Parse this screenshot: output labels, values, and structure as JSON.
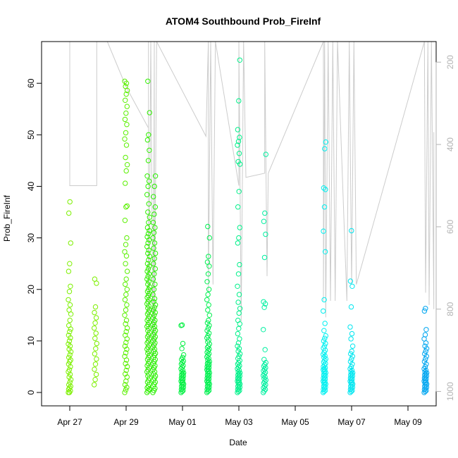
{
  "chart_data": {
    "type": "scatter",
    "title": "ATOM4 Southbound Prob_FireInf",
    "xlabel": "Date",
    "ylabel": "Prob_FireInf",
    "x_ticks": [
      "Apr 27",
      "Apr 29",
      "May 01",
      "May 03",
      "May 05",
      "May 07",
      "May 09"
    ],
    "y_ticks": [
      "0",
      "10",
      "20",
      "30",
      "40",
      "50",
      "60"
    ],
    "ylim": [
      0,
      67
    ],
    "right_axis": {
      "ticks": [
        "200",
        "400",
        "600",
        "800",
        "1000"
      ],
      "range": [
        1035,
        150
      ],
      "inverted": true,
      "color": "#b3b3b3"
    },
    "overlay_line_color": "#cccccc",
    "grid": false,
    "legend": "none",
    "x_start": "2024-04-26",
    "x_end": "2024-05-10",
    "clusters": [
      {
        "time": "2024-04-27T00:00",
        "color": "#7df000",
        "values": [
          0,
          0,
          0.3,
          0.6,
          0.9,
          1.2,
          1.5,
          2,
          2.5,
          3,
          3.5,
          4,
          4.4,
          5,
          5.5,
          6,
          6.3,
          6.8,
          7.3,
          7.9,
          8.4,
          9,
          9.4,
          10,
          10.6,
          11.1,
          11.8,
          12.3,
          13,
          14,
          15.2,
          16,
          17,
          18,
          19.6,
          20.6,
          23.5,
          25,
          29,
          34.8,
          37
        ]
      },
      {
        "time": "2024-04-27T22:00",
        "color": "#7df000",
        "values": [
          1.5,
          2.5,
          3.5,
          4.5,
          5.5,
          6.5,
          7.5,
          8.5,
          9.5,
          10.5,
          11.5,
          12.5,
          13.5,
          14.5,
          15.5,
          16.6,
          21.2,
          22
        ]
      },
      {
        "time": "2024-04-29T00:00",
        "color": "#5af000",
        "values": [
          0,
          0.5,
          1,
          1.5,
          2.2,
          3,
          3.6,
          4.3,
          5,
          5.6,
          6.3,
          7,
          7.7,
          8.4,
          9,
          9.7,
          10.4,
          11.1,
          11.8,
          12.5,
          13.3,
          14,
          15,
          16,
          17,
          18,
          19,
          20,
          21,
          22,
          23.5,
          25,
          26.5,
          27.3,
          28.7,
          30,
          33.4,
          36,
          36.2,
          40.6,
          43,
          44.2,
          45.6,
          48,
          49.2,
          50.4,
          52,
          53,
          54.2,
          55.5,
          56.7,
          57.9,
          58.6,
          59.4,
          60,
          60.4
        ]
      },
      {
        "time": "2024-04-29T19:00",
        "color": "#30f000",
        "values": [
          0,
          0.3,
          0.6,
          0.9,
          1.2,
          1.6,
          2,
          2.4,
          2.8,
          3.2,
          3.6,
          4,
          4.4,
          4.8,
          5.2,
          5.6,
          6,
          6.4,
          6.8,
          7.2,
          7.6,
          8,
          8.4,
          8.8,
          9.2,
          9.6,
          10,
          10.4,
          10.8,
          11.2,
          11.6,
          12,
          12.4,
          12.8,
          13.2,
          13.6,
          14,
          14.4,
          14.8,
          15.2,
          15.6,
          16,
          16.4,
          16.8,
          17.2,
          17.6,
          18,
          18.4,
          18.8,
          19.2,
          19.6,
          20,
          20.5,
          21,
          21.5,
          22,
          22.5,
          23,
          23.5,
          24,
          24.5,
          25,
          25.7,
          26.4,
          27,
          27.6,
          28.3,
          29,
          29.6,
          30.2,
          30.8,
          31.4,
          32,
          33,
          34,
          35,
          36.6,
          38.4,
          40,
          41,
          42,
          45,
          47,
          49,
          50,
          54.3,
          60.4
        ]
      },
      {
        "time": "2024-04-30T00:00",
        "color": "#28f000",
        "values": [
          0,
          0.4,
          0.8,
          1.2,
          1.6,
          2,
          2.4,
          2.8,
          3.2,
          3.6,
          4,
          4.4,
          4.8,
          5.2,
          5.6,
          6,
          6.4,
          6.8,
          7.2,
          7.6,
          8,
          8.4,
          8.8,
          9.2,
          9.6,
          10,
          10.4,
          10.8,
          11.2,
          11.6,
          12,
          12.4,
          12.8,
          13.2,
          13.6,
          14,
          14.5,
          15,
          15.5,
          16,
          16.5,
          17,
          17.6,
          18.2,
          19,
          20,
          21,
          22,
          23,
          24,
          25,
          26,
          27,
          28,
          29,
          30,
          31,
          32,
          33,
          34.6,
          36,
          38,
          40,
          42
        ]
      },
      {
        "time": "2024-05-01T00:00",
        "color": "#00f040",
        "values": [
          0,
          0.2,
          0.4,
          0.6,
          0.8,
          1,
          1.2,
          1.4,
          1.6,
          1.8,
          2,
          2.2,
          2.4,
          2.6,
          2.8,
          3,
          3.2,
          3.4,
          3.6,
          3.8,
          4,
          4.3,
          4.6,
          4.9,
          5.2,
          5.5,
          5.8,
          6.1,
          6.4,
          6.8,
          7.3,
          8.5,
          9.5,
          13,
          13.1
        ]
      },
      {
        "time": "2024-05-01T22:00",
        "color": "#00f050",
        "values": [
          0,
          0.2,
          0.4,
          0.6,
          0.8,
          1,
          1.2,
          1.4,
          1.6,
          1.8,
          2,
          2.2,
          2.4,
          2.6,
          2.8,
          3,
          3.2,
          3.4,
          3.6,
          3.8,
          4,
          4.2,
          4.4,
          4.6,
          4.8,
          5,
          5.2,
          5.4,
          5.6,
          5.8,
          6,
          6.3,
          6.6,
          6.9,
          7.2,
          7.5,
          7.8,
          8.1,
          8.4,
          8.7,
          9,
          9.4,
          9.8,
          10.2,
          10.6,
          11,
          11.5,
          12,
          12.5,
          13,
          13.5,
          14,
          15,
          16,
          17,
          18,
          19,
          20,
          21.5,
          23,
          24.5,
          25.3,
          26.4,
          30,
          32.2
        ]
      },
      {
        "time": "2024-05-03T00:00",
        "color": "#00f08a",
        "values": [
          0,
          0.2,
          0.4,
          0.6,
          0.8,
          1,
          1.2,
          1.4,
          1.6,
          1.8,
          2,
          2.2,
          2.4,
          2.6,
          2.8,
          3,
          3.2,
          3.4,
          3.6,
          3.8,
          4,
          4.3,
          4.6,
          4.9,
          5.2,
          5.5,
          5.8,
          6.2,
          6.6,
          7,
          7.5,
          8,
          8.5,
          9,
          9.6,
          10.4,
          11.4,
          12.4,
          13.3,
          14,
          15.4,
          16.3,
          17.5,
          19,
          20.6,
          23,
          24.8,
          29,
          30,
          32,
          36,
          39,
          44.3,
          44.8,
          46.4,
          48,
          48.7,
          49.5,
          51,
          56.6,
          64.5
        ]
      },
      {
        "time": "2024-05-03T22:00",
        "color": "#00f0a0",
        "values": [
          0,
          0.3,
          0.6,
          0.9,
          1.2,
          1.5,
          1.8,
          2.1,
          2.4,
          2.7,
          3,
          3.3,
          3.6,
          3.9,
          4.2,
          4.5,
          4.8,
          5.1,
          5.4,
          5.8,
          6.4,
          8.3,
          12.2,
          16.5,
          17.2,
          17.6,
          26.2,
          30.7,
          33.2,
          34.8,
          46.2
        ]
      },
      {
        "time": "2024-05-06T01:00",
        "color": "#00f0f0",
        "values": [
          0,
          0.2,
          0.4,
          0.6,
          0.8,
          1,
          1.2,
          1.4,
          1.6,
          1.8,
          2,
          2.2,
          2.4,
          2.6,
          2.8,
          3,
          3.2,
          3.4,
          3.6,
          3.8,
          4,
          4.2,
          4.4,
          4.6,
          4.8,
          5,
          5.3,
          5.6,
          5.9,
          6.2,
          6.5,
          6.8,
          7.1,
          7.4,
          7.8,
          8.2,
          8.6,
          9,
          9.5,
          10,
          10.5,
          11,
          12,
          13.4,
          15.8,
          18,
          27.3,
          31.3,
          36,
          39.4,
          39.7,
          47.3,
          48.6
        ]
      },
      {
        "time": "2024-05-07T00:00",
        "color": "#00e6f0",
        "values": [
          0,
          0.2,
          0.4,
          0.6,
          0.8,
          1,
          1.2,
          1.4,
          1.6,
          1.8,
          2,
          2.2,
          2.4,
          2.6,
          2.8,
          3,
          3.2,
          3.4,
          3.6,
          3.8,
          4,
          4.3,
          4.6,
          5,
          5.5,
          6,
          6.5,
          7,
          7.5,
          8,
          9,
          10.4,
          11.4,
          12.7,
          16.6,
          20.6,
          21.6,
          31.4
        ]
      },
      {
        "time": "2024-05-09T15:00",
        "color": "#00a6f0",
        "values": [
          0,
          0.2,
          0.4,
          0.6,
          0.8,
          1,
          1.2,
          1.4,
          1.6,
          1.8,
          2,
          2.2,
          2.4,
          2.6,
          2.8,
          3,
          3.2,
          3.4,
          3.6,
          3.8,
          4,
          4.3,
          4.6,
          5,
          5.5,
          6,
          6.5,
          7,
          7.5,
          8,
          8.5,
          9,
          9.6,
          10.4,
          11.2,
          12.2,
          15.8,
          16.3
        ]
      }
    ],
    "overlay_series": {
      "name": "",
      "points": [
        [
          "2024-04-27T00:00",
          150
        ],
        [
          "2024-04-27T00:00",
          500
        ],
        [
          "2024-04-27T23:00",
          500
        ],
        [
          "2024-04-27T23:00",
          150
        ],
        [
          "2024-04-28T08:00",
          150
        ],
        [
          "2024-04-29T00:00",
          260
        ],
        [
          "2024-04-29T19:00",
          360
        ],
        [
          "2024-04-29T19:00",
          150
        ],
        [
          "2024-04-29T19:00",
          960
        ],
        [
          "2024-04-29T21:00",
          150
        ],
        [
          "2024-04-29T23:00",
          960
        ],
        [
          "2024-04-30T00:00",
          150
        ],
        [
          "2024-04-30T00:00",
          900
        ],
        [
          "2024-04-30T02:00",
          150
        ],
        [
          "2024-05-01T20:00",
          380
        ],
        [
          "2024-05-01T22:00",
          150
        ],
        [
          "2024-05-01T22:00",
          760
        ],
        [
          "2024-05-02T00:00",
          150
        ],
        [
          "2024-05-02T02:00",
          740
        ],
        [
          "2024-05-02T04:00",
          150
        ],
        [
          "2024-05-03T00:00",
          500
        ],
        [
          "2024-05-03T00:00",
          150
        ],
        [
          "2024-05-03T02:00",
          830
        ],
        [
          "2024-05-03T04:00",
          150
        ],
        [
          "2024-05-03T06:00",
          480
        ],
        [
          "2024-05-03T22:00",
          470
        ],
        [
          "2024-05-03T22:00",
          150
        ],
        [
          "2024-05-04T00:00",
          720
        ],
        [
          "2024-05-04T01:00",
          470
        ],
        [
          "2024-05-06T00:00",
          150
        ],
        [
          "2024-05-06T00:00",
          780
        ],
        [
          "2024-05-06T01:00",
          150
        ],
        [
          "2024-05-06T02:00",
          820
        ],
        [
          "2024-05-06T04:00",
          150
        ],
        [
          "2024-05-06T06:00",
          780
        ],
        [
          "2024-05-06T08:00",
          150
        ],
        [
          "2024-05-06T10:00",
          780
        ],
        [
          "2024-05-06T12:00",
          150
        ],
        [
          "2024-05-06T20:00",
          780
        ],
        [
          "2024-05-06T22:00",
          150
        ],
        [
          "2024-05-07T00:00",
          740
        ],
        [
          "2024-05-07T02:00",
          150
        ],
        [
          "2024-05-07T04:00",
          740
        ],
        [
          "2024-05-09T14:00",
          150
        ],
        [
          "2024-05-09T15:00",
          760
        ],
        [
          "2024-05-09T17:00",
          150
        ],
        [
          "2024-05-09T18:00",
          790
        ],
        [
          "2024-05-09T20:00",
          150
        ],
        [
          "2024-05-09T22:00",
          800
        ],
        [
          "2024-05-09T22:00",
          370
        ]
      ]
    }
  }
}
